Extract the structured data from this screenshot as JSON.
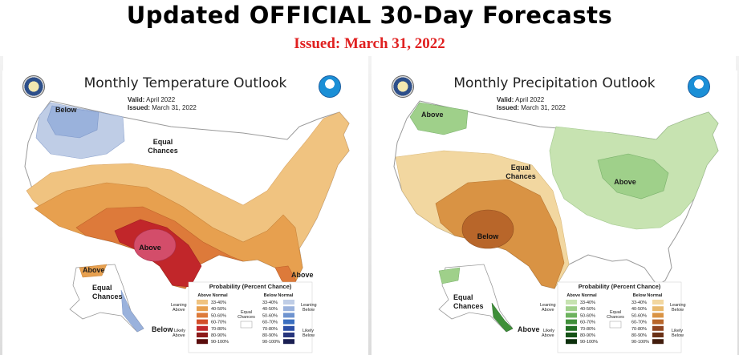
{
  "headline": "Updated OFFICIAL 30-Day Forecasts",
  "issued_line": "Issued: March 31, 2022",
  "temperature": {
    "title": "Monthly Temperature Outlook",
    "valid_label": "Valid:",
    "valid_value": "April 2022",
    "issued_label": "Issued:",
    "issued_value": "March 31, 2022",
    "region_labels": [
      "Below",
      "Equal Chances",
      "Above",
      "Above",
      "Equal Chances",
      "Below",
      "Above"
    ],
    "legend": {
      "title": "Probability (Percent Chance)",
      "left_heading": "Above Normal",
      "right_heading": "Below Normal",
      "ranges": [
        "33-40%",
        "40-50%",
        "50-60%",
        "60-70%",
        "70-80%",
        "80-90%",
        "90-100%"
      ],
      "left_top": "Leaning Above",
      "left_bottom": "Likely Above",
      "right_top": "Leaning Below",
      "right_bottom": "Likely Below",
      "center": "Equal Chances",
      "above_colors": [
        "#f0c380",
        "#e7a04f",
        "#dd7a3a",
        "#d34d29",
        "#c1262a",
        "#8d1a1a",
        "#5a0c0c"
      ],
      "below_colors": [
        "#bfcde6",
        "#9ab2dc",
        "#6e93cf",
        "#3b6fc0",
        "#2b4ea5",
        "#27357c",
        "#1a1f52"
      ]
    }
  },
  "precipitation": {
    "title": "Monthly Precipitation Outlook",
    "valid_label": "Valid:",
    "valid_value": "April 2022",
    "issued_label": "Issued:",
    "issued_value": "March 31, 2022",
    "region_labels": [
      "Above",
      "Equal Chances",
      "Above",
      "Below",
      "Equal Chances",
      "Above"
    ],
    "legend": {
      "title": "Probability (Percent Chance)",
      "left_heading": "Above Normal",
      "right_heading": "Below Normal",
      "ranges": [
        "33-40%",
        "40-50%",
        "50-60%",
        "60-70%",
        "70-80%",
        "80-90%",
        "90-100%"
      ],
      "left_top": "Leaning Above",
      "left_bottom": "Likely Above",
      "right_top": "Leaning Below",
      "right_bottom": "Likely Below",
      "center": "Equal Chances",
      "above_colors": [
        "#c7e3b1",
        "#9fd08a",
        "#6db35e",
        "#3f8f39",
        "#217022",
        "#155216",
        "#0c300c"
      ],
      "below_colors": [
        "#f2d7a0",
        "#e8b96e",
        "#d99344",
        "#b8662a",
        "#8f4420",
        "#6a3117",
        "#421d0d"
      ]
    }
  }
}
